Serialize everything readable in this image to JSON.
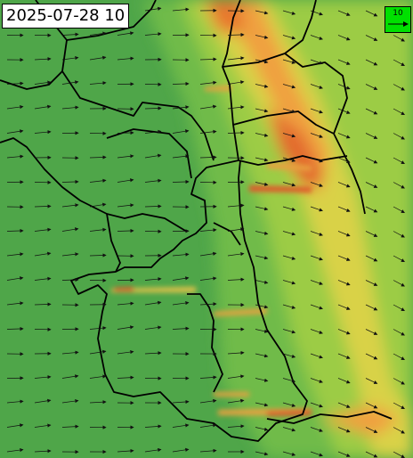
{
  "timestamp": "2025-07-28 10",
  "legend": {
    "label": "10"
  }
}
